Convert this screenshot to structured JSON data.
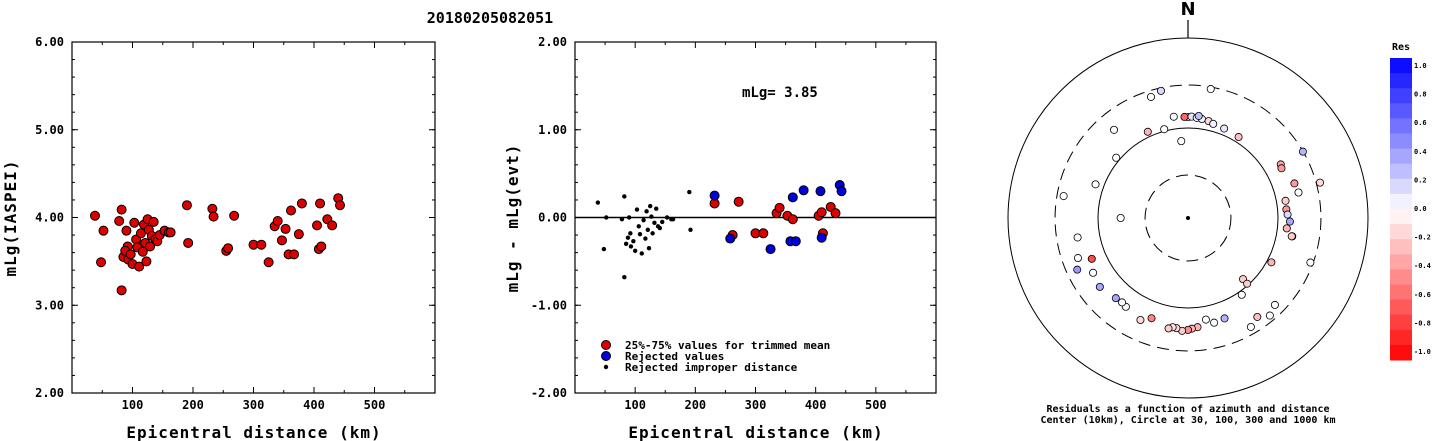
{
  "title": "20180205082051",
  "chart_data": [
    {
      "type": "scatter",
      "ylabel": "mLg(IASPEI)",
      "xlabel": "Epicentral distance (km)",
      "xlim": [
        0,
        600
      ],
      "ylim": [
        2.0,
        6.0
      ],
      "xticks": [
        "100",
        "200",
        "300",
        "400",
        "500"
      ],
      "yticks": [
        "2.00",
        "3.00",
        "4.00",
        "5.00",
        "6.00"
      ],
      "series": [
        {
          "color": "#dd0000",
          "points": [
            [
              38,
              4.02
            ],
            [
              52,
              3.85
            ],
            [
              48,
              3.49
            ],
            [
              78,
              3.96
            ],
            [
              82,
              4.09
            ],
            [
              90,
              3.85
            ],
            [
              92,
              3.67
            ],
            [
              85,
              3.55
            ],
            [
              88,
              3.62
            ],
            [
              93,
              3.52
            ],
            [
              97,
              3.58
            ],
            [
              100,
              3.47
            ],
            [
              103,
              3.94
            ],
            [
              106,
              3.75
            ],
            [
              108,
              3.66
            ],
            [
              111,
              3.44
            ],
            [
              114,
              3.82
            ],
            [
              117,
              3.61
            ],
            [
              119,
              3.92
            ],
            [
              121,
              3.71
            ],
            [
              123,
              3.5
            ],
            [
              125,
              3.98
            ],
            [
              127,
              3.86
            ],
            [
              129,
              3.67
            ],
            [
              132,
              3.79
            ],
            [
              135,
              3.95
            ],
            [
              138,
              3.75
            ],
            [
              141,
              3.73
            ],
            [
              145,
              3.8
            ],
            [
              153,
              3.85
            ],
            [
              160,
              3.83
            ],
            [
              163,
              3.83
            ],
            [
              82,
              3.17
            ],
            [
              190,
              4.14
            ],
            [
              192,
              3.71
            ],
            [
              232,
              4.1
            ],
            [
              234,
              4.01
            ],
            [
              255,
              3.62
            ],
            [
              258,
              3.65
            ],
            [
              268,
              4.02
            ],
            [
              300,
              3.69
            ],
            [
              313,
              3.69
            ],
            [
              325,
              3.49
            ],
            [
              335,
              3.9
            ],
            [
              340,
              3.96
            ],
            [
              347,
              3.74
            ],
            [
              353,
              3.87
            ],
            [
              358,
              3.58
            ],
            [
              362,
              4.08
            ],
            [
              367,
              3.58
            ],
            [
              375,
              3.81
            ],
            [
              380,
              4.16
            ],
            [
              405,
              3.91
            ],
            [
              410,
              4.16
            ],
            [
              408,
              3.64
            ],
            [
              412,
              3.67
            ],
            [
              422,
              3.98
            ],
            [
              430,
              3.91
            ],
            [
              440,
              4.22
            ],
            [
              443,
              4.14
            ]
          ]
        }
      ]
    },
    {
      "type": "scatter",
      "ylabel": "mLg - mLg(evt)",
      "xlabel": "Epicentral distance (km)",
      "xlim": [
        0,
        600
      ],
      "ylim": [
        -2.0,
        2.0
      ],
      "xticks": [
        "100",
        "200",
        "300",
        "400",
        "500"
      ],
      "yticks": [
        "-2.00",
        "-1.00",
        "0.00",
        "1.00",
        "2.00"
      ],
      "annotation": "mLg= 3.85",
      "series": [
        {
          "name": "25%-75% values for trimmed mean",
          "color": "#dd0000",
          "points": [
            [
              232,
              0.16
            ],
            [
              262,
              -0.2
            ],
            [
              272,
              0.18
            ],
            [
              300,
              -0.18
            ],
            [
              313,
              -0.18
            ],
            [
              335,
              0.05
            ],
            [
              340,
              0.11
            ],
            [
              353,
              0.02
            ],
            [
              362,
              -0.02
            ],
            [
              405,
              0.02
            ],
            [
              410,
              0.06
            ],
            [
              412,
              -0.18
            ],
            [
              425,
              0.12
            ],
            [
              433,
              0.05
            ]
          ]
        },
        {
          "name": "Rejected values",
          "color": "#0000dd",
          "points": [
            [
              232,
              0.25
            ],
            [
              258,
              -0.24
            ],
            [
              325,
              -0.36
            ],
            [
              358,
              -0.27
            ],
            [
              362,
              0.23
            ],
            [
              367,
              -0.27
            ],
            [
              380,
              0.31
            ],
            [
              408,
              0.3
            ],
            [
              410,
              -0.23
            ],
            [
              440,
              0.37
            ],
            [
              443,
              0.3
            ]
          ]
        },
        {
          "name": "Rejected improper distance",
          "color": "#000000",
          "points": [
            [
              38,
              0.17
            ],
            [
              48,
              -0.36
            ],
            [
              52,
              0.0
            ],
            [
              78,
              -0.02
            ],
            [
              82,
              0.24
            ],
            [
              82,
              -0.68
            ],
            [
              85,
              -0.3
            ],
            [
              88,
              -0.23
            ],
            [
              90,
              0.0
            ],
            [
              92,
              -0.18
            ],
            [
              93,
              -0.33
            ],
            [
              97,
              -0.27
            ],
            [
              100,
              -0.38
            ],
            [
              103,
              0.09
            ],
            [
              106,
              -0.1
            ],
            [
              108,
              -0.19
            ],
            [
              111,
              -0.41
            ],
            [
              114,
              -0.03
            ],
            [
              117,
              -0.24
            ],
            [
              119,
              0.07
            ],
            [
              121,
              -0.14
            ],
            [
              123,
              -0.35
            ],
            [
              125,
              0.13
            ],
            [
              127,
              0.01
            ],
            [
              129,
              -0.18
            ],
            [
              132,
              -0.06
            ],
            [
              135,
              0.1
            ],
            [
              138,
              -0.1
            ],
            [
              141,
              -0.12
            ],
            [
              145,
              -0.05
            ],
            [
              153,
              0.0
            ],
            [
              160,
              -0.02
            ],
            [
              163,
              -0.02
            ],
            [
              190,
              0.29
            ],
            [
              192,
              -0.14
            ]
          ]
        }
      ]
    },
    {
      "type": "polar-scatter",
      "north_label": "N",
      "caption_line1": "Residuals as a function of azimuth and distance",
      "caption_line2": "Center (10km), Circle at 30, 100, 300 and 1000 km",
      "rings_km": [
        30,
        100,
        300,
        1000
      ],
      "colorbar": {
        "title": "Res",
        "range": [
          -1.0,
          1.0
        ],
        "ticks": [
          "1.0",
          "0.8",
          "0.6",
          "0.4",
          "0.2",
          "0.0",
          "-0.2",
          "-0.4",
          "-0.6",
          "-0.8",
          "-1.0"
        ],
        "positive_color": "#0000ff",
        "negative_color": "#ff0000"
      },
      "points_az_dist_res": [
        [
          0,
          132,
          -0.02
        ],
        [
          358,
          133,
          -0.6
        ],
        [
          2,
          134,
          0.1
        ],
        [
          5,
          131,
          0.0
        ],
        [
          8,
          129,
          0.05
        ],
        [
          352,
          137,
          -0.02
        ],
        [
          6,
          138,
          0.25
        ],
        [
          12,
          126,
          -0.15
        ],
        [
          15,
          121,
          0.05
        ],
        [
          22,
          118,
          0.1
        ],
        [
          32,
          115,
          -0.25
        ],
        [
          345,
          105,
          0.0
        ],
        [
          355,
          72,
          0.0
        ],
        [
          60,
          155,
          -0.35
        ],
        [
          62,
          150,
          -0.4
        ],
        [
          80,
          126,
          -0.2
        ],
        [
          85,
          125,
          -0.4
        ],
        [
          88,
          128,
          0.15
        ],
        [
          92,
          136,
          0.35
        ],
        [
          72,
          175,
          -0.4
        ],
        [
          77,
          182,
          0.0
        ],
        [
          60,
          298,
          0.3
        ],
        [
          75,
          330,
          -0.15
        ],
        [
          100,
          150,
          -0.4
        ],
        [
          118,
          112,
          -0.3
        ],
        [
          138,
          82,
          -0.2
        ],
        [
          138,
          96,
          -0.2
        ],
        [
          145,
          110,
          0.0
        ],
        [
          160,
          154,
          0.3
        ],
        [
          166,
          158,
          0.0
        ],
        [
          170,
          140,
          0.0
        ],
        [
          175,
          165,
          -0.3
        ],
        [
          178,
          170,
          -0.3
        ],
        [
          180,
          175,
          -0.45
        ],
        [
          183,
          180,
          -0.2
        ],
        [
          186,
          170,
          -0.15
        ],
        [
          188,
          168,
          -0.1
        ],
        [
          190,
          176,
          -0.2
        ],
        [
          200,
          153,
          -0.5
        ],
        [
          205,
          178,
          -0.15
        ],
        [
          110,
          280,
          0.0
        ],
        [
          135,
          232,
          0.0
        ],
        [
          140,
          260,
          0.0
        ],
        [
          150,
          250,
          0.0
        ],
        [
          145,
          220,
          -0.25
        ],
        [
          215,
          160,
          0.0
        ],
        [
          218,
          155,
          0.0
        ],
        [
          222,
          158,
          0.35
        ],
        [
          232,
          175,
          0.35
        ],
        [
          240,
          165,
          0.0
        ],
        [
          247,
          145,
          -0.7
        ],
        [
          260,
          176,
          0.0
        ],
        [
          270,
          56,
          0.0
        ],
        [
          290,
          124,
          0.0
        ],
        [
          310,
          110,
          0.0
        ],
        [
          335,
          114,
          -0.3
        ],
        [
          343,
          255,
          0.0
        ],
        [
          348,
          278,
          0.15
        ],
        [
          10,
          285,
          0.0
        ],
        [
          100,
          148,
          -0.2
        ],
        [
          96,
          127,
          -0.3
        ],
        [
          280,
          253,
          0.0
        ],
        [
          320,
          190,
          0.0
        ],
        [
          250,
          200,
          0.0
        ],
        [
          245,
          228,
          0.4
        ]
      ]
    }
  ]
}
